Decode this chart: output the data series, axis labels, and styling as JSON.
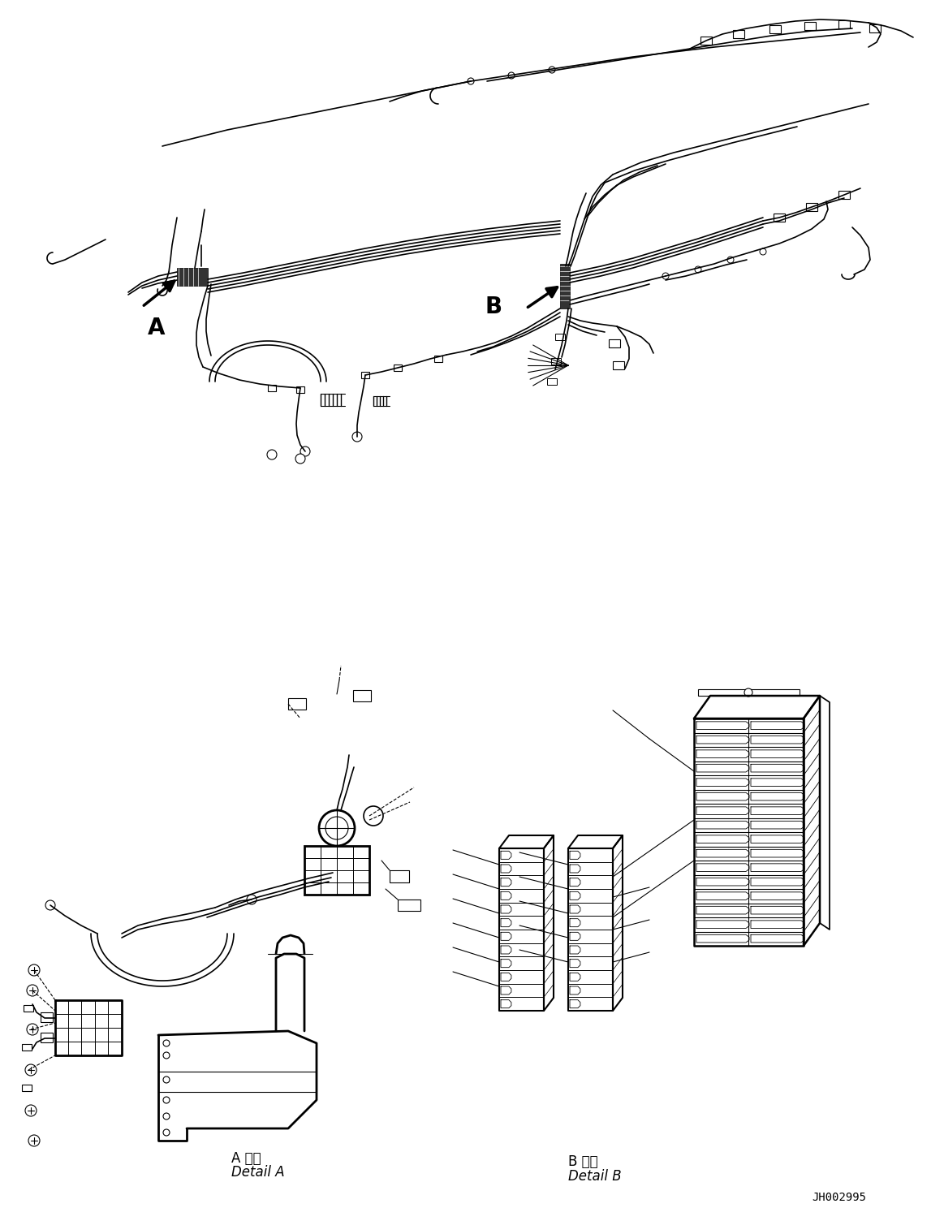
{
  "background_color": "#ffffff",
  "line_color": "#000000",
  "fig_width": 11.63,
  "fig_height": 14.88,
  "dpi": 100,
  "label_A": "A",
  "label_B": "B",
  "detail_A_text_ja": "A 詳細",
  "detail_A_text_en": "Detail A",
  "detail_B_text_ja": "B 詳細",
  "detail_B_text_en": "Detail B",
  "part_number": "JH002995",
  "font_size_labels": 20,
  "font_size_detail": 12,
  "font_size_partnum": 10
}
